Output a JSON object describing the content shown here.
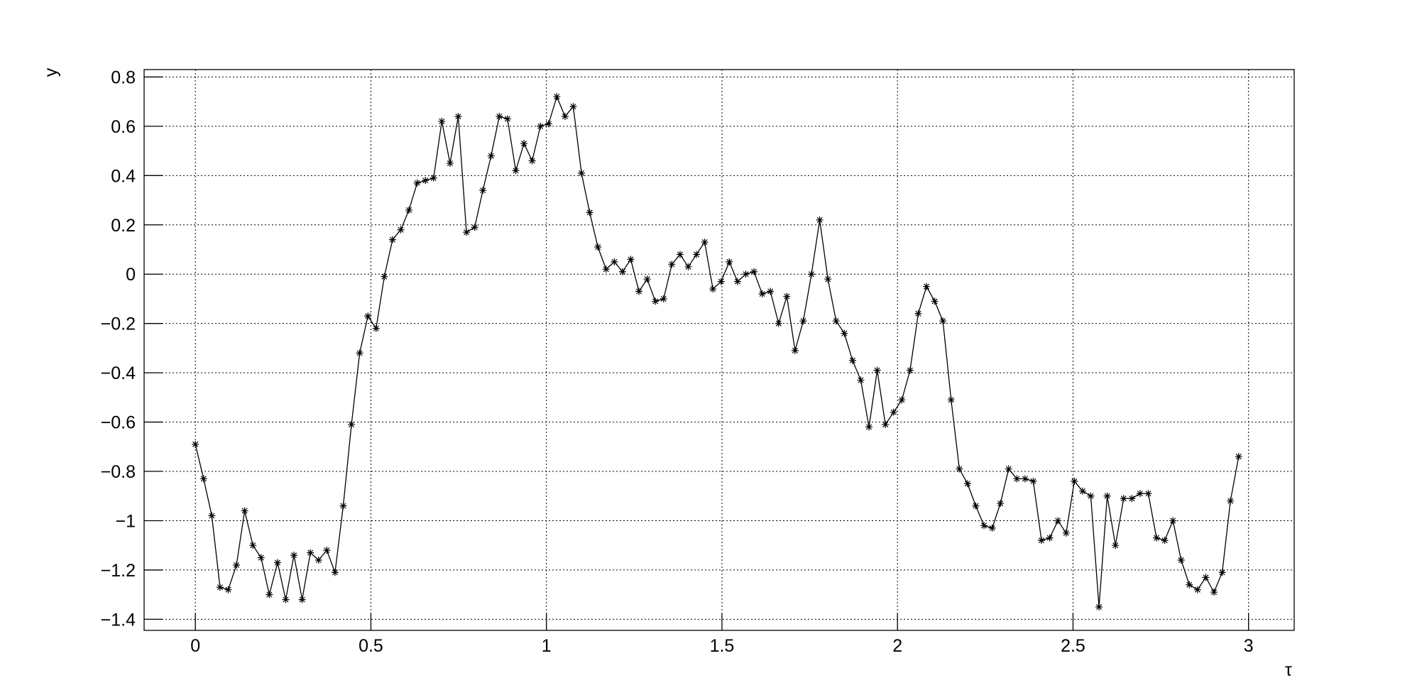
{
  "chart_data": {
    "type": "line",
    "xlabel": "τ",
    "ylabel": "y",
    "x": [
      0,
      0.0234,
      0.0468,
      0.0702,
      0.0936,
      0.117,
      0.1404,
      0.1638,
      0.1872,
      0.2106,
      0.234,
      0.2574,
      0.2808,
      0.3042,
      0.3276,
      0.351,
      0.3744,
      0.3978,
      0.4212,
      0.4446,
      0.468,
      0.4914,
      0.5148,
      0.5382,
      0.5616,
      0.585,
      0.6084,
      0.6318,
      0.6552,
      0.6786,
      0.702,
      0.7254,
      0.7488,
      0.7722,
      0.7956,
      0.819,
      0.8424,
      0.8658,
      0.8892,
      0.9126,
      0.936,
      0.9594,
      0.9828,
      1.0062,
      1.0296,
      1.053,
      1.0764,
      1.0998,
      1.1232,
      1.1466,
      1.17,
      1.1934,
      1.2168,
      1.2402,
      1.2636,
      1.287,
      1.3104,
      1.3338,
      1.3572,
      1.3806,
      1.404,
      1.4274,
      1.4508,
      1.4742,
      1.4976,
      1.521,
      1.5444,
      1.5678,
      1.5912,
      1.6146,
      1.638,
      1.6614,
      1.6848,
      1.7082,
      1.7316,
      1.755,
      1.7784,
      1.8018,
      1.8252,
      1.8486,
      1.872,
      1.8954,
      1.9188,
      1.9422,
      1.9656,
      1.989,
      2.0124,
      2.0358,
      2.0592,
      2.0826,
      2.106,
      2.1294,
      2.1528,
      2.1762,
      2.1996,
      2.223,
      2.2464,
      2.2698,
      2.2932,
      2.3166,
      2.34,
      2.3634,
      2.3868,
      2.4102,
      2.4336,
      2.457,
      2.4804,
      2.5038,
      2.5272,
      2.5506,
      2.574,
      2.5974,
      2.6208,
      2.6442,
      2.6676,
      2.691,
      2.7144,
      2.7378,
      2.7612,
      2.7846,
      2.808,
      2.8314,
      2.8548,
      2.8782,
      2.9016,
      2.925,
      2.9484,
      2.9718
    ],
    "series": [
      {
        "color": "#000000",
        "values": [
          -0.69,
          -0.83,
          -0.98,
          -1.27,
          -1.28,
          -1.18,
          -0.96,
          -1.1,
          -1.15,
          -1.3,
          -1.17,
          -1.32,
          -1.14,
          -1.32,
          -1.13,
          -1.16,
          -1.12,
          -1.21,
          -0.94,
          -0.61,
          -0.32,
          -0.17,
          -0.22,
          -0.01,
          0.14,
          0.18,
          0.26,
          0.37,
          0.38,
          0.39,
          0.62,
          0.45,
          0.64,
          0.17,
          0.19,
          0.34,
          0.48,
          0.64,
          0.63,
          0.42,
          0.53,
          0.46,
          0.6,
          0.61,
          0.72,
          0.64,
          0.68,
          0.41,
          0.25,
          0.11,
          0.02,
          0.05,
          0.01,
          0.06,
          -0.07,
          -0.02,
          -0.11,
          -0.1,
          0.04,
          0.08,
          0.03,
          0.08,
          0.13,
          -0.06,
          -0.03,
          0.05,
          -0.03,
          0,
          0.01,
          -0.08,
          -0.07,
          -0.2,
          -0.09,
          -0.31,
          -0.19,
          0,
          0.22,
          -0.02,
          -0.19,
          -0.24,
          -0.35,
          -0.43,
          -0.62,
          -0.39,
          -0.61,
          -0.56,
          -0.51,
          -0.39,
          -0.16,
          -0.05,
          -0.11,
          -0.19,
          -0.51,
          -0.79,
          -0.85,
          -0.94,
          -1.02,
          -1.03,
          -0.93,
          -0.79,
          -0.83,
          -0.83,
          -0.84,
          -1.08,
          -1.07,
          -1,
          -1.05,
          -0.84,
          -0.88,
          -0.9,
          -1.35,
          -0.9,
          -1.1,
          -0.91,
          -0.91,
          -0.89,
          -0.89,
          -1.07,
          -1.08,
          -1,
          -1.16,
          -1.26,
          -1.28,
          -1.23,
          -1.29,
          -1.21,
          -0.92,
          -0.74
        ]
      }
    ],
    "xlim": [
      -0.146,
      3.13
    ],
    "ylim": [
      -1.445,
      0.83
    ],
    "xticks": [
      0,
      0.5,
      1,
      1.5,
      2,
      2.5,
      3
    ],
    "yticks": [
      {
        "value": -1.4,
        "label": "−1.4"
      },
      {
        "value": -1.2,
        "label": "−1.2"
      },
      {
        "value": -1,
        "label": "−1"
      },
      {
        "value": -0.8,
        "label": "−0.8"
      },
      {
        "value": -0.6,
        "label": "−0.6"
      },
      {
        "value": -0.4,
        "label": "−0.4"
      },
      {
        "value": -0.2,
        "label": "−0.2"
      },
      0,
      0.2,
      0.4,
      0.6,
      0.8
    ],
    "grid": true
  }
}
